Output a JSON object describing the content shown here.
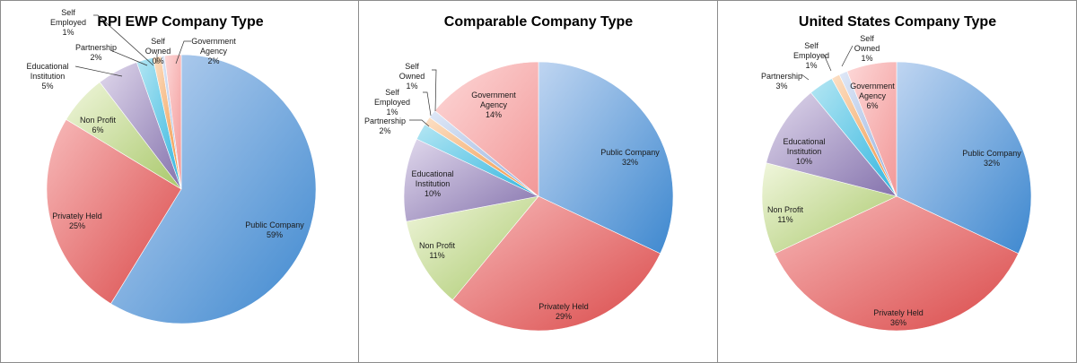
{
  "colors": {
    "public_company": "#4f8fd0",
    "privately_held": "#e06060",
    "non_profit": "#bcd48a",
    "educational_institution": "#9a88bd",
    "partnership": "#54c3e3",
    "self_employed": "#f5a55e",
    "self_owned": "#a8bde0",
    "government_agency": "#f4a8a8"
  },
  "chart_data": [
    {
      "type": "pie",
      "title": "RPI EWP Company Type",
      "slices": [
        {
          "key": "public_company",
          "label": "Public Company",
          "value_label": "59%",
          "value": 59
        },
        {
          "key": "privately_held",
          "label": "Privately Held",
          "value_label": "25%",
          "value": 25
        },
        {
          "key": "non_profit",
          "label": "Non Profit",
          "value_label": "6%",
          "value": 6
        },
        {
          "key": "educational_institution",
          "label": "Educational Institution",
          "value_label": "5%",
          "value": 5
        },
        {
          "key": "partnership",
          "label": "Partnership",
          "value_label": "2%",
          "value": 2
        },
        {
          "key": "self_employed",
          "label": "Self Employed",
          "value_label": "1%",
          "value": 1
        },
        {
          "key": "self_owned",
          "label": "Self Owned",
          "value_label": "0%",
          "value": 0.4
        },
        {
          "key": "government_agency",
          "label": "Government Agency",
          "value_label": "2%",
          "value": 2
        }
      ]
    },
    {
      "type": "pie",
      "title": "Comparable Company Type",
      "slices": [
        {
          "key": "public_company",
          "label": "Public Company",
          "value_label": "32%",
          "value": 32
        },
        {
          "key": "privately_held",
          "label": "Privately Held",
          "value_label": "29%",
          "value": 29
        },
        {
          "key": "non_profit",
          "label": "Non Profit",
          "value_label": "11%",
          "value": 11
        },
        {
          "key": "educational_institution",
          "label": "Educational Institution",
          "value_label": "10%",
          "value": 10
        },
        {
          "key": "partnership",
          "label": "Partnership",
          "value_label": "2%",
          "value": 2
        },
        {
          "key": "self_employed",
          "label": "Self Employed",
          "value_label": "1%",
          "value": 1
        },
        {
          "key": "self_owned",
          "label": "Self Owned",
          "value_label": "1%",
          "value": 1
        },
        {
          "key": "government_agency",
          "label": "Government Agency",
          "value_label": "14%",
          "value": 14
        }
      ]
    },
    {
      "type": "pie",
      "title": "United States Company Type",
      "slices": [
        {
          "key": "public_company",
          "label": "Public Company",
          "value_label": "32%",
          "value": 32
        },
        {
          "key": "privately_held",
          "label": "Privately Held",
          "value_label": "36%",
          "value": 36
        },
        {
          "key": "non_profit",
          "label": "Non Profit",
          "value_label": "11%",
          "value": 11
        },
        {
          "key": "educational_institution",
          "label": "Educational Institution",
          "value_label": "10%",
          "value": 10
        },
        {
          "key": "partnership",
          "label": "Partnership",
          "value_label": "3%",
          "value": 3
        },
        {
          "key": "self_employed",
          "label": "Self Employed",
          "value_label": "1%",
          "value": 1
        },
        {
          "key": "self_owned",
          "label": "Self Owned",
          "value_label": "1%",
          "value": 1
        },
        {
          "key": "government_agency",
          "label": "Government Agency",
          "value_label": "6%",
          "value": 6
        }
      ]
    }
  ]
}
